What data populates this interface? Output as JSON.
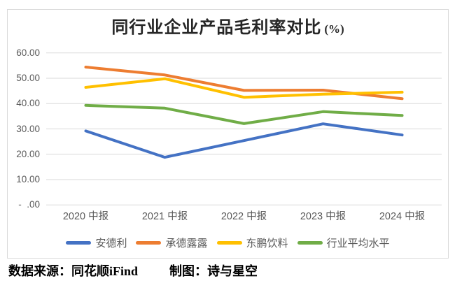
{
  "title": {
    "main": "同行业企业产品毛利率对比",
    "suffix": "(%)"
  },
  "caption": {
    "source_label": "数据来源：同花顺iFind",
    "author_label": "制图：诗与星空"
  },
  "colors": {
    "gridline": "#d9d9d9",
    "frame_border": "#d9d9d9",
    "axis_text": "#595959",
    "title_text": "#262626",
    "caption_text": "#000000"
  },
  "chart_data": {
    "type": "line",
    "title": "同行业企业产品毛利率对比(%)",
    "categories": [
      "2020 中报",
      "2021 中报",
      "2022 中报",
      "2023 中报",
      "2024 中报"
    ],
    "series": [
      {
        "name": "安德利",
        "color": "#4472C4",
        "values": [
          29.2,
          18.8,
          25.4,
          32.0,
          27.6
        ]
      },
      {
        "name": "承德露露",
        "color": "#ED7D31",
        "values": [
          54.4,
          51.3,
          45.2,
          45.3,
          41.9
        ]
      },
      {
        "name": "东鹏饮料",
        "color": "#FFC000",
        "values": [
          46.4,
          49.8,
          42.5,
          43.7,
          44.5
        ]
      },
      {
        "name": "行业平均水平",
        "color": "#70AD47",
        "values": [
          39.3,
          38.2,
          32.1,
          36.8,
          35.3
        ]
      }
    ],
    "ylim": [
      0,
      60
    ],
    "y_ticks": [
      {
        "value": 60,
        "label": "60.00"
      },
      {
        "value": 50,
        "label": "50.00"
      },
      {
        "value": 40,
        "label": "40.00"
      },
      {
        "value": 30,
        "label": "30.00"
      },
      {
        "value": 20,
        "label": "20.00"
      },
      {
        "value": 10,
        "label": "10.00"
      },
      {
        "value": 0,
        "label": "-  .00"
      }
    ],
    "grid": true,
    "legend_position": "bottom",
    "line_width": 4
  }
}
